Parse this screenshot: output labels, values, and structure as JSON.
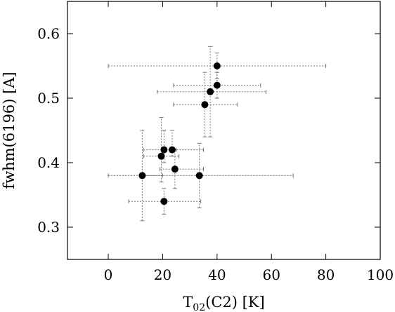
{
  "chart_data": {
    "type": "scatter",
    "title": "",
    "xlabel": "T02(C2) [K]",
    "xlabel_parts": {
      "base": "T",
      "sub": "02",
      "rest": "(C2) [K]"
    },
    "ylabel": "fwhm(6196) [A]",
    "xlim": [
      -15,
      100
    ],
    "ylim": [
      0.25,
      0.65
    ],
    "x_ticks": [
      0,
      20,
      40,
      60,
      80,
      100
    ],
    "y_ticks": [
      0.3,
      0.4,
      0.5,
      0.6
    ],
    "x_tick_labels": [
      "0",
      "20",
      "40",
      "60",
      "80",
      "100"
    ],
    "y_tick_labels": [
      "0.3",
      "0.4",
      "0.5",
      "0.6"
    ],
    "grid": false,
    "legend": "none",
    "marker_color": "#000000",
    "errorbar_color": "#777777",
    "points": [
      {
        "x": 40,
        "y": 0.55,
        "xerr": [
          0,
          80
        ],
        "yerr": [
          0.53,
          0.57
        ]
      },
      {
        "x": 40,
        "y": 0.52,
        "xerr": [
          24,
          56
        ],
        "yerr": [
          0.5,
          0.54
        ]
      },
      {
        "x": 37.5,
        "y": 0.51,
        "xerr": [
          18,
          58
        ],
        "yerr": [
          0.44,
          0.58
        ]
      },
      {
        "x": 35.5,
        "y": 0.49,
        "xerr": [
          24,
          47.5
        ],
        "yerr": [
          0.44,
          0.54
        ]
      },
      {
        "x": 20.5,
        "y": 0.42,
        "xerr": [
          13,
          25
        ],
        "yerr": [
          0.4,
          0.45
        ]
      },
      {
        "x": 23.5,
        "y": 0.42,
        "xerr": [
          21,
          35
        ],
        "yerr": [
          0.41,
          0.45
        ]
      },
      {
        "x": 19.5,
        "y": 0.41,
        "xerr": [
          13,
          26
        ],
        "yerr": [
          0.37,
          0.47
        ]
      },
      {
        "x": 24.5,
        "y": 0.39,
        "xerr": [
          19,
          35
        ],
        "yerr": [
          0.36,
          0.42
        ]
      },
      {
        "x": 12.5,
        "y": 0.38,
        "xerr": [
          0,
          20
        ],
        "yerr": [
          0.31,
          0.45
        ]
      },
      {
        "x": 33.5,
        "y": 0.38,
        "xerr": [
          13,
          68
        ],
        "yerr": [
          0.33,
          0.43
        ]
      },
      {
        "x": 20.5,
        "y": 0.34,
        "xerr": [
          7.5,
          34
        ],
        "yerr": [
          0.32,
          0.36
        ]
      }
    ]
  }
}
